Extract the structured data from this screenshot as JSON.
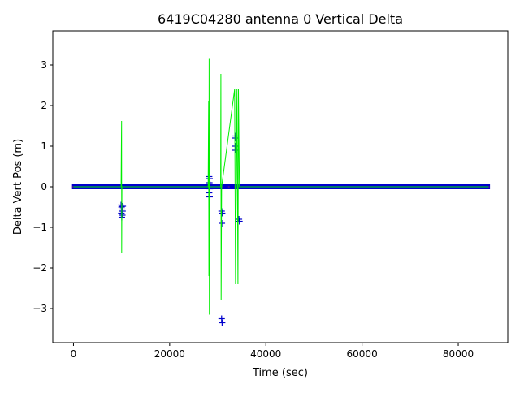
{
  "chart_data": {
    "type": "scatter",
    "title": "6419C04280 antenna 0 Vertical Delta",
    "xlabel": "Time (sec)",
    "ylabel": "Delta Vert Pos (m)",
    "xlim": [
      -4300,
      90300
    ],
    "ylim": [
      -3.84,
      3.84
    ],
    "xticks": [
      0,
      20000,
      40000,
      60000,
      80000
    ],
    "yticks": [
      -3,
      -2,
      -1,
      0,
      1,
      2,
      3
    ],
    "grid": false,
    "colors": {
      "marker": "#0000cc",
      "line": "#00ee00",
      "axis": "#000000"
    },
    "series": [
      {
        "type": "marker_cluster",
        "marker": "+",
        "points": [
          {
            "x": 9900,
            "y": -0.45
          },
          {
            "x": 10000,
            "y": -0.5
          },
          {
            "x": 10100,
            "y": -0.55
          },
          {
            "x": 10200,
            "y": -0.6
          },
          {
            "x": 9950,
            "y": -0.65
          },
          {
            "x": 10150,
            "y": -0.7
          },
          {
            "x": 10050,
            "y": -0.75
          },
          {
            "x": 10250,
            "y": -0.48
          },
          {
            "x": 28200,
            "y": 0.25
          },
          {
            "x": 28300,
            "y": 0.2
          },
          {
            "x": 28250,
            "y": 0.1
          },
          {
            "x": 28350,
            "y": -0.05
          },
          {
            "x": 28200,
            "y": -0.15
          },
          {
            "x": 28300,
            "y": -0.25
          },
          {
            "x": 28400,
            "y": 0.05
          },
          {
            "x": 30800,
            "y": -0.6
          },
          {
            "x": 30900,
            "y": -0.65
          },
          {
            "x": 30850,
            "y": -0.9
          },
          {
            "x": 30800,
            "y": -3.25
          },
          {
            "x": 30900,
            "y": -3.35
          },
          {
            "x": 33600,
            "y": 1.25
          },
          {
            "x": 33700,
            "y": 1.2
          },
          {
            "x": 33650,
            "y": 1.0
          },
          {
            "x": 33700,
            "y": 0.9
          },
          {
            "x": 34400,
            "y": -0.8
          },
          {
            "x": 34500,
            "y": -0.85
          }
        ]
      },
      {
        "type": "line",
        "points": [
          {
            "x": 0,
            "y": 0.0
          },
          {
            "x": 9900,
            "y": 0.0
          },
          {
            "x": 9950,
            "y": 0.9
          },
          {
            "x": 10000,
            "y": 1.62
          },
          {
            "x": 10020,
            "y": -1.62
          },
          {
            "x": 10080,
            "y": 0.0
          },
          {
            "x": 28000,
            "y": 0.0
          },
          {
            "x": 28100,
            "y": 2.1
          },
          {
            "x": 28150,
            "y": -2.2
          },
          {
            "x": 28200,
            "y": 3.15
          },
          {
            "x": 28250,
            "y": -3.15
          },
          {
            "x": 28350,
            "y": 0.0
          },
          {
            "x": 30600,
            "y": 0.0
          },
          {
            "x": 30650,
            "y": 2.78
          },
          {
            "x": 30700,
            "y": -2.78
          },
          {
            "x": 30800,
            "y": 0.0
          },
          {
            "x": 33500,
            "y": 2.4
          },
          {
            "x": 33700,
            "y": -2.4
          },
          {
            "x": 34000,
            "y": 2.42
          },
          {
            "x": 34200,
            "y": -2.4
          },
          {
            "x": 34300,
            "y": 2.4
          },
          {
            "x": 34500,
            "y": 0.0
          },
          {
            "x": 86300,
            "y": 0.0
          }
        ]
      }
    ],
    "band": {
      "x_start": -300,
      "x_end": 86600,
      "y_low": -0.06,
      "y_high": 0.06
    }
  }
}
